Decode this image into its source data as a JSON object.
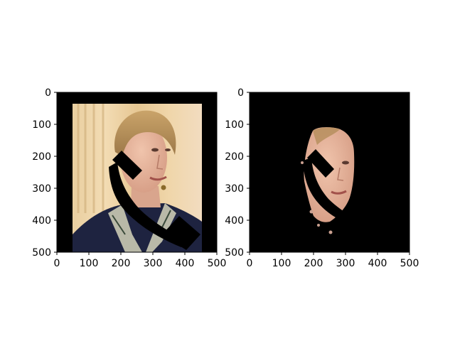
{
  "figure": {
    "background": "#ffffff"
  },
  "panels": [
    {
      "name": "left",
      "image_content": "masked-portrait-photo"
    },
    {
      "name": "right",
      "image_content": "segmented-face-on-black"
    }
  ],
  "chart_data": [
    {
      "type": "image",
      "title": "",
      "xlabel": "",
      "ylabel": "",
      "xlim": [
        0,
        500
      ],
      "ylim": [
        500,
        0
      ],
      "xticks": [
        0,
        100,
        200,
        300,
        400,
        500
      ],
      "yticks": [
        0,
        100,
        200,
        300,
        400,
        500
      ],
      "xtick_labels": [
        "0",
        "100",
        "200",
        "300",
        "400",
        "500"
      ],
      "ytick_labels": [
        "0",
        "100",
        "200",
        "300",
        "400",
        "500"
      ],
      "grid": false
    },
    {
      "type": "image",
      "title": "",
      "xlabel": "",
      "ylabel": "",
      "xlim": [
        0,
        500
      ],
      "ylim": [
        500,
        0
      ],
      "xticks": [
        0,
        100,
        200,
        300,
        400,
        500
      ],
      "yticks": [
        0,
        100,
        200,
        300,
        400,
        500
      ],
      "xtick_labels": [
        "0",
        "100",
        "200",
        "300",
        "400",
        "500"
      ],
      "ytick_labels": [
        "0",
        "100",
        "200",
        "300",
        "400",
        "500"
      ],
      "grid": false
    }
  ]
}
